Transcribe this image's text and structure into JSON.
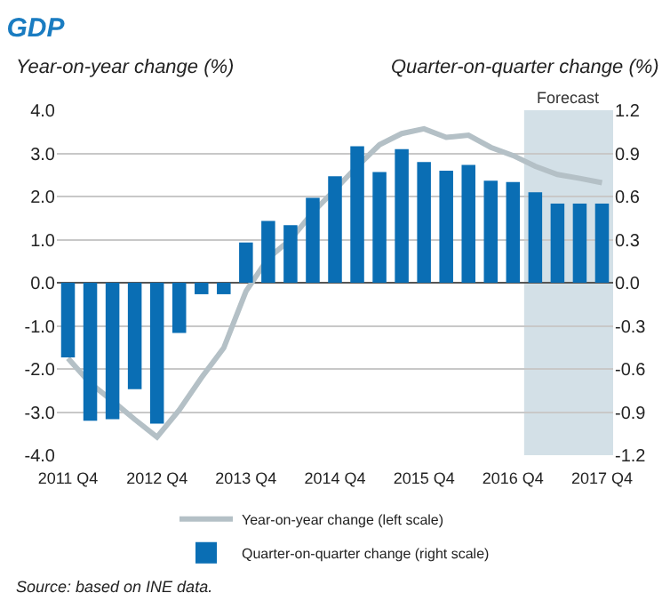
{
  "chart_data": {
    "type": "bar",
    "title": "GDP",
    "ylabel": "Year-on-year change (%)",
    "y2label": "Quarter-on-quarter change (%)",
    "categories": [
      "2011 Q4",
      null,
      null,
      null,
      "2012 Q4",
      null,
      null,
      null,
      "2013 Q4",
      null,
      null,
      null,
      "2014 Q4",
      null,
      null,
      null,
      "2015 Q4",
      null,
      null,
      null,
      "2016 Q4",
      null,
      null,
      null,
      "2017 Q4"
    ],
    "series": [
      {
        "name": "Year-on-year change (left scale)",
        "type": "line",
        "axis": "y",
        "color": "#b4c0c6",
        "values": [
          -1.75,
          -2.33,
          -2.74,
          -3.17,
          -3.58,
          -2.95,
          -2.2,
          -1.51,
          -0.2,
          0.57,
          1.0,
          1.63,
          2.16,
          2.7,
          3.2,
          3.46,
          3.57,
          3.37,
          3.42,
          3.14,
          2.95,
          2.7,
          2.51,
          2.42,
          2.32
        ]
      },
      {
        "name": "Quarter-on-quarter change (right scale)",
        "axis": "y2",
        "color": "#0a6eb4",
        "values": [
          -0.52,
          -0.96,
          -0.95,
          -0.74,
          -0.98,
          -0.35,
          -0.08,
          -0.08,
          0.28,
          0.43,
          0.4,
          0.59,
          0.74,
          0.95,
          0.77,
          0.93,
          0.84,
          0.78,
          0.82,
          0.71,
          0.7,
          0.63,
          0.55,
          0.55,
          0.55
        ]
      }
    ],
    "ylim": [
      -4,
      4
    ],
    "yticks": [
      {
        "value": 4,
        "label": "4.0"
      },
      {
        "value": 3,
        "label": "3.0"
      },
      {
        "value": 2,
        "label": "2.0"
      },
      {
        "value": 1,
        "label": "1.0"
      },
      {
        "value": 0,
        "label": "0.0"
      },
      {
        "value": -1,
        "label": "-1.0"
      },
      {
        "value": -2,
        "label": "-2.0"
      },
      {
        "value": -3,
        "label": "-3.0"
      },
      {
        "value": -4,
        "label": "-4.0"
      }
    ],
    "y2lim": [
      -1.2,
      1.2
    ],
    "y2ticks": [
      {
        "value": 1.2,
        "label": "1.2"
      },
      {
        "value": 0.9,
        "label": "0.9"
      },
      {
        "value": 0.6,
        "label": "0.6"
      },
      {
        "value": 0.3,
        "label": "0.3"
      },
      {
        "value": 0,
        "label": "0.0"
      },
      {
        "value": -0.3,
        "label": "-0.3"
      },
      {
        "value": -0.6,
        "label": "-0.6"
      },
      {
        "value": -0.9,
        "label": "-0.9"
      },
      {
        "value": -1.2,
        "label": "-1.2"
      }
    ],
    "bands": [
      {
        "axis": "x",
        "from": "2016 Q4",
        "to": "2017 Q4",
        "label": "Forecast",
        "color": "#d3e0e7"
      }
    ],
    "grid": "y",
    "legend": "bottom",
    "marker": "none",
    "line_style": "solid",
    "annotations": [
      "Source: based on INE data."
    ]
  }
}
